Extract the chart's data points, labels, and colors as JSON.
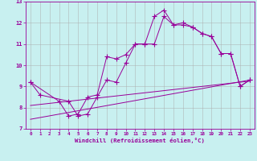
{
  "xlabel": "Windchill (Refroidissement éolien,°C)",
  "background_color": "#c8f0f0",
  "grid_color": "#aaaaaa",
  "line_color": "#990099",
  "xlim": [
    -0.5,
    23.5
  ],
  "ylim": [
    7,
    13
  ],
  "yticks": [
    7,
    8,
    9,
    10,
    11,
    12,
    13
  ],
  "xticks": [
    0,
    1,
    2,
    3,
    4,
    5,
    6,
    7,
    8,
    9,
    10,
    11,
    12,
    13,
    14,
    15,
    16,
    17,
    18,
    19,
    20,
    21,
    22,
    23
  ],
  "line1_x": [
    0,
    1,
    4,
    5,
    6,
    7,
    8,
    9,
    10,
    11,
    12,
    13,
    14,
    15,
    16,
    17,
    18,
    19,
    20,
    21,
    22,
    23
  ],
  "line1_y": [
    9.2,
    8.6,
    8.3,
    7.6,
    7.7,
    8.5,
    9.3,
    9.2,
    10.1,
    11.0,
    11.0,
    12.3,
    12.6,
    11.9,
    12.0,
    11.8,
    11.5,
    11.35,
    10.55,
    10.55,
    9.0,
    9.3
  ],
  "line2_x": [
    0,
    3,
    4,
    5,
    6,
    7,
    8,
    9,
    10,
    11,
    12,
    13,
    14,
    15,
    16,
    17,
    18,
    19,
    20,
    21,
    22,
    23
  ],
  "line2_y": [
    9.2,
    8.3,
    7.6,
    7.7,
    8.5,
    8.6,
    10.4,
    10.3,
    10.5,
    11.0,
    11.0,
    11.0,
    12.3,
    11.9,
    11.9,
    11.8,
    11.5,
    11.35,
    10.55,
    10.55,
    9.0,
    9.3
  ],
  "trend1_x": [
    0,
    23
  ],
  "trend1_y": [
    8.1,
    9.25
  ],
  "trend2_x": [
    0,
    23
  ],
  "trend2_y": [
    7.45,
    9.3
  ]
}
